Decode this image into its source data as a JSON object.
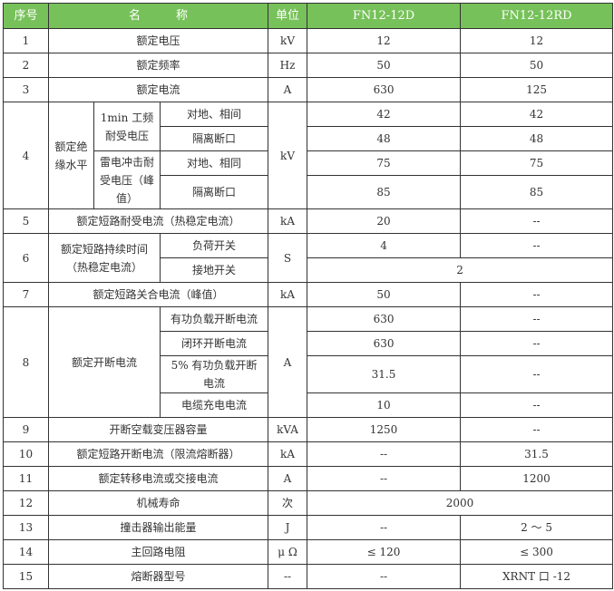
{
  "header": {
    "no": "序号",
    "name": "名　　　称",
    "unit": "单位",
    "col_d": "FN12-12D",
    "col_rd": "FN12-12RD"
  },
  "header_color": "#77c15a",
  "rows": {
    "r1": {
      "no": "1",
      "name": "额定电压",
      "unit": "kV",
      "d": "12",
      "rd": "12"
    },
    "r2": {
      "no": "2",
      "name": "额定频率",
      "unit": "Hz",
      "d": "50",
      "rd": "50"
    },
    "r3": {
      "no": "3",
      "name": "额定电流",
      "unit": "A",
      "d": "630",
      "rd": "125"
    },
    "r4": {
      "no": "4",
      "name": "额定绝缘水平",
      "sub1": "1min 工频耐受电压",
      "sub2": "雷电冲击耐受电压（峰值）",
      "s1": "对地、相间",
      "s2": "隔离断口",
      "s3": "对地、相同",
      "s4": "隔离断口",
      "unit": "kV",
      "d1": "42",
      "rd1": "42",
      "d2": "48",
      "rd2": "48",
      "d3": "75",
      "rd3": "75",
      "d4": "85",
      "rd4": "85"
    },
    "r5": {
      "no": "5",
      "name": "额定短路耐受电流（热稳定电流）",
      "unit": "kA",
      "d": "20",
      "rd": "--"
    },
    "r6": {
      "no": "6",
      "name": "额定短路持续时间（热稳定电流）",
      "s1": "负荷开关",
      "s2": "接地开关",
      "unit": "S",
      "d1": "4",
      "rd1": "--",
      "v2": "2"
    },
    "r7": {
      "no": "7",
      "name": "额定短路关合电流（峰值）",
      "unit": "kA",
      "d": "50",
      "rd": "--"
    },
    "r8": {
      "no": "8",
      "name": "额定开断电流",
      "s1": "有功负载开断电流",
      "s2": "闭环开断电流",
      "s3": "5% 有功负载开断电流",
      "s4": "电缆充电电流",
      "unit": "A",
      "d1": "630",
      "rd1": "--",
      "d2": "630",
      "rd2": "--",
      "d3": "31.5",
      "rd3": "--",
      "d4": "10",
      "rd4": "--"
    },
    "r9": {
      "no": "9",
      "name": "开断空载变压器容量",
      "unit": "kVA",
      "d": "1250",
      "rd": "--"
    },
    "r10": {
      "no": "10",
      "name": "额定短路开断电流（限流熔断器）",
      "unit": "kA",
      "d": "--",
      "rd": "31.5"
    },
    "r11": {
      "no": "11",
      "name": "额定转移电流或交接电流",
      "unit": "A",
      "d": "--",
      "rd": "1200"
    },
    "r12": {
      "no": "12",
      "name": "机械寿命",
      "unit": "次",
      "v": "2000"
    },
    "r13": {
      "no": "13",
      "name": "撞击器输出能量",
      "unit": "J",
      "d": "--",
      "rd": "2 ～ 5"
    },
    "r14": {
      "no": "14",
      "name": "主回路电阻",
      "unit": "μ Ω",
      "d": "≤ 120",
      "rd": "≤ 300"
    },
    "r15": {
      "no": "15",
      "name": "熔断器型号",
      "unit": "--",
      "d": "--",
      "rd": "XRNT 口 -12"
    }
  }
}
